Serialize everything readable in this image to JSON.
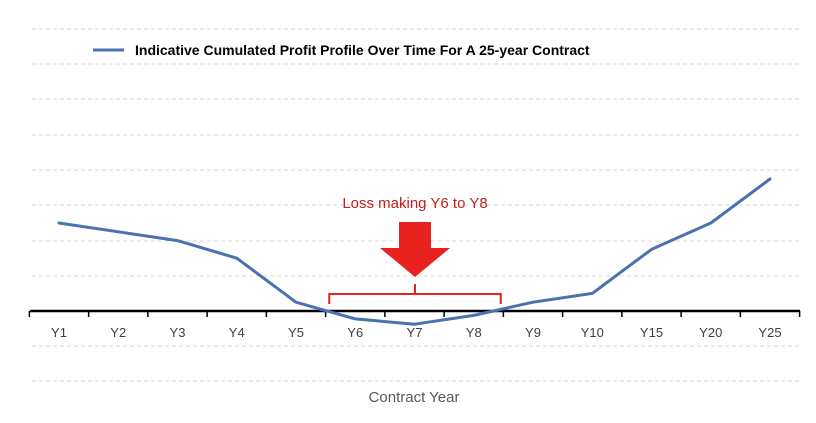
{
  "chart_data": {
    "type": "line",
    "categories": [
      "Y1",
      "Y2",
      "Y3",
      "Y4",
      "Y5",
      "Y6",
      "Y7",
      "Y8",
      "Y9",
      "Y10",
      "Y15",
      "Y20",
      "Y25"
    ],
    "series": [
      {
        "name": "Indicative Cumulated Profit Profile Over Time For A 25-year Contract",
        "values": [
          5.0,
          4.5,
          4.0,
          3.0,
          0.5,
          -0.45,
          -0.75,
          -0.25,
          0.5,
          1.0,
          3.5,
          5.0,
          7.5
        ],
        "color": "#4a72b0"
      }
    ],
    "xlabel": "Contract Year",
    "ylabel": "",
    "ylim": [
      -2,
      8
    ],
    "grid": true,
    "legend": "top",
    "annotation": {
      "text": "Loss making Y6 to Y8",
      "from_category": "Y6",
      "to_category": "Y8",
      "color": "#e8231f",
      "text_color": "#c0211f"
    }
  }
}
